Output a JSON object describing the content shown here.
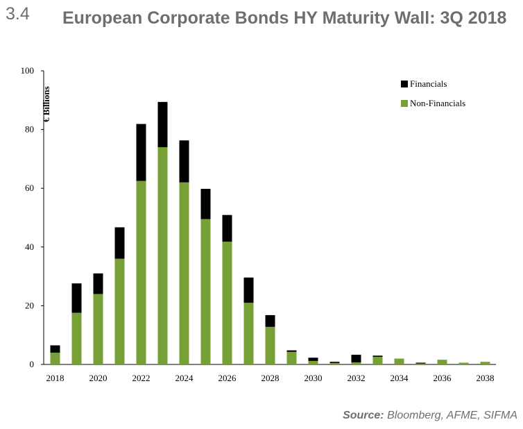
{
  "header": {
    "section_number": "3.4",
    "title": "European Corporate Bonds HY Maturity Wall: 3Q 2018"
  },
  "source": {
    "label": "Source:",
    "text": "Bloomberg, AFME, SIFMA"
  },
  "colors": {
    "financials": "#000000",
    "non_financials": "#77a136",
    "text_gray": "#6d6e70"
  },
  "chart_data": {
    "type": "bar",
    "stacked": true,
    "ylabel": "€ Billions",
    "ylim": [
      0,
      100
    ],
    "yticks": [
      0,
      20,
      40,
      60,
      80,
      100
    ],
    "xticks": [
      "2018",
      "2020",
      "2022",
      "2024",
      "2026",
      "2028",
      "2030",
      "2032",
      "2034",
      "2036",
      "2038"
    ],
    "categories": [
      "2018",
      "2019",
      "2020",
      "2021",
      "2022",
      "2023",
      "2024",
      "2025",
      "2026",
      "2027",
      "2028",
      "2029",
      "2030",
      "2031",
      "2032",
      "2033",
      "2034",
      "2035",
      "2036",
      "2037",
      "2038"
    ],
    "legend_position": "top-right",
    "grid": false,
    "series": [
      {
        "name": "Non-Financials",
        "color": "#77a136",
        "values": [
          4.0,
          17.6,
          24.0,
          36.0,
          62.5,
          74.0,
          62.0,
          49.5,
          41.8,
          21.0,
          12.8,
          4.3,
          1.2,
          0.5,
          0.7,
          2.6,
          2.0,
          0.3,
          1.6,
          0.6,
          0.9
        ]
      },
      {
        "name": "Financials",
        "color": "#000000",
        "values": [
          2.5,
          10.0,
          7.0,
          10.7,
          19.4,
          15.4,
          14.3,
          10.3,
          9.1,
          8.6,
          4.0,
          0.5,
          1.1,
          0.4,
          2.6,
          0.4,
          0.0,
          0.3,
          0.0,
          0.0,
          0.0
        ]
      }
    ]
  }
}
